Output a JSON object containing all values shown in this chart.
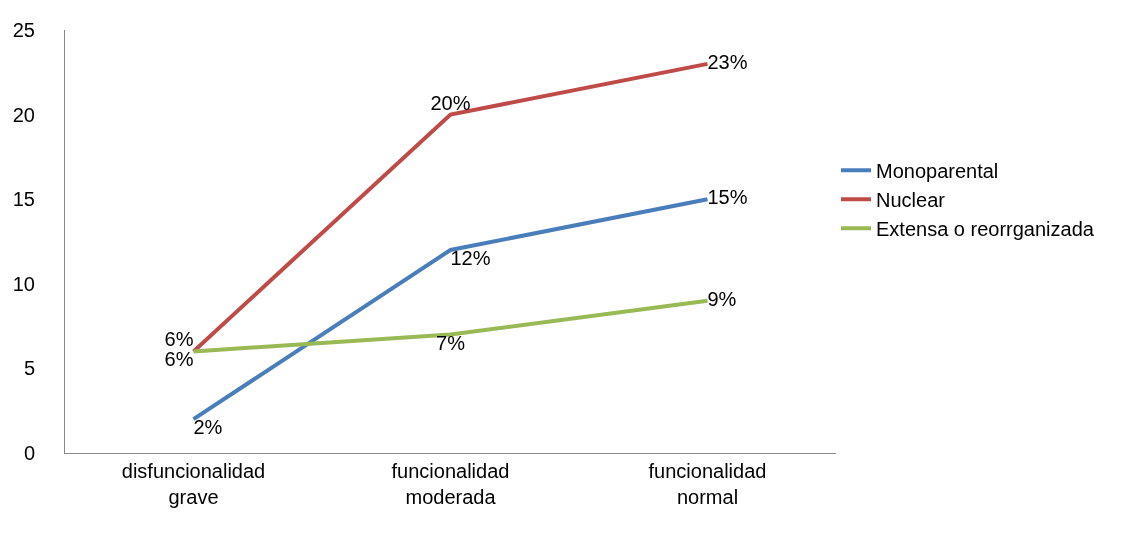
{
  "chart_data": {
    "type": "line",
    "categories": [
      "disfuncionalidad grave",
      "funcionalidad moderada",
      "funcionalidad normal"
    ],
    "series": [
      {
        "name": "Monoparental",
        "color": "#4a7ebb",
        "values": [
          2,
          12,
          15
        ],
        "value_labels": [
          "2%",
          "12%",
          "15%"
        ]
      },
      {
        "name": "Nuclear",
        "color": "#be4b48",
        "values": [
          6,
          20,
          23
        ],
        "value_labels": [
          "6%",
          "20%",
          "23%"
        ]
      },
      {
        "name": "Extensa o reorrganizada",
        "color": "#98b954",
        "values": [
          6,
          7,
          9
        ],
        "value_labels": [
          "6%",
          "7%",
          "9%"
        ]
      }
    ],
    "ylim": [
      0,
      25
    ],
    "yticks": [
      0,
      5,
      10,
      15,
      20,
      25
    ],
    "grid": false,
    "legend": "right",
    "marker": "none",
    "line_style": "solid"
  }
}
